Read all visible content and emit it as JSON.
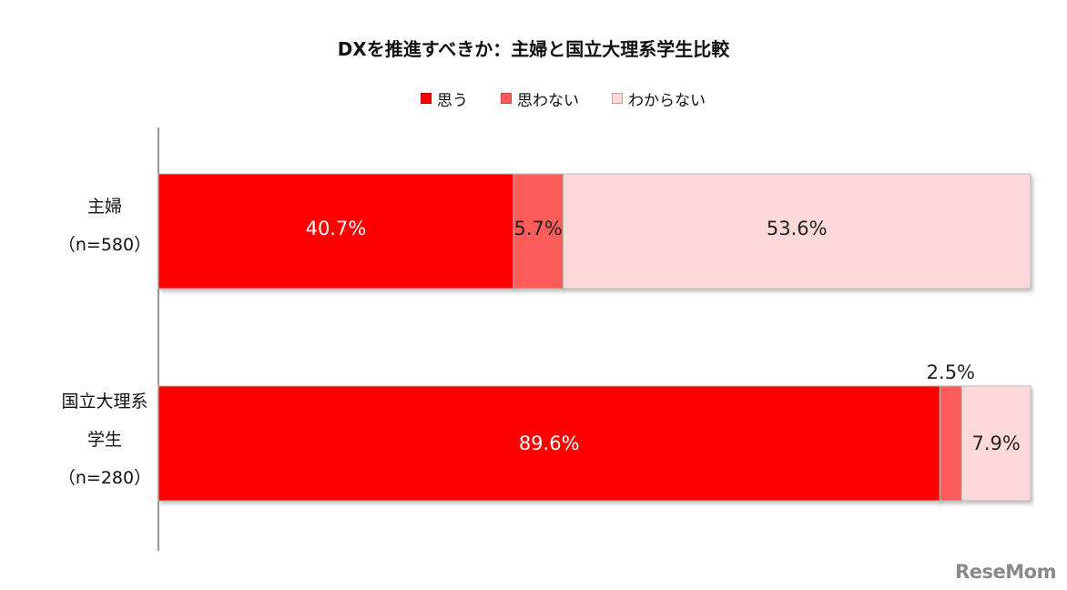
{
  "chart_data": {
    "type": "bar",
    "orientation": "horizontal",
    "stacked": true,
    "title": "DXを推進すべきか：主婦と国立大理系学生比較",
    "categories": [
      {
        "lines": [
          "主婦",
          "（n=580）"
        ]
      },
      {
        "lines": [
          "国立大理系",
          "学生",
          "（n=280）"
        ]
      }
    ],
    "series": [
      {
        "name": "思う",
        "color": "#ff0000",
        "label_color": "#ffffff",
        "values": [
          40.7,
          89.6
        ]
      },
      {
        "name": "思わない",
        "color": "#ff5b5b",
        "label_color": "#222222",
        "values": [
          5.7,
          2.5
        ]
      },
      {
        "name": "わからない",
        "color": "#ffd9d9",
        "label_color": "#222222",
        "values": [
          53.6,
          7.9
        ]
      }
    ],
    "value_labels": [
      [
        "40.7%",
        "5.7%",
        "53.6%"
      ],
      [
        "89.6%",
        "2.5%",
        "7.9%"
      ]
    ],
    "xlim": [
      0,
      100
    ],
    "legend_position": "top",
    "grid": false
  },
  "watermark": "ReseMom"
}
